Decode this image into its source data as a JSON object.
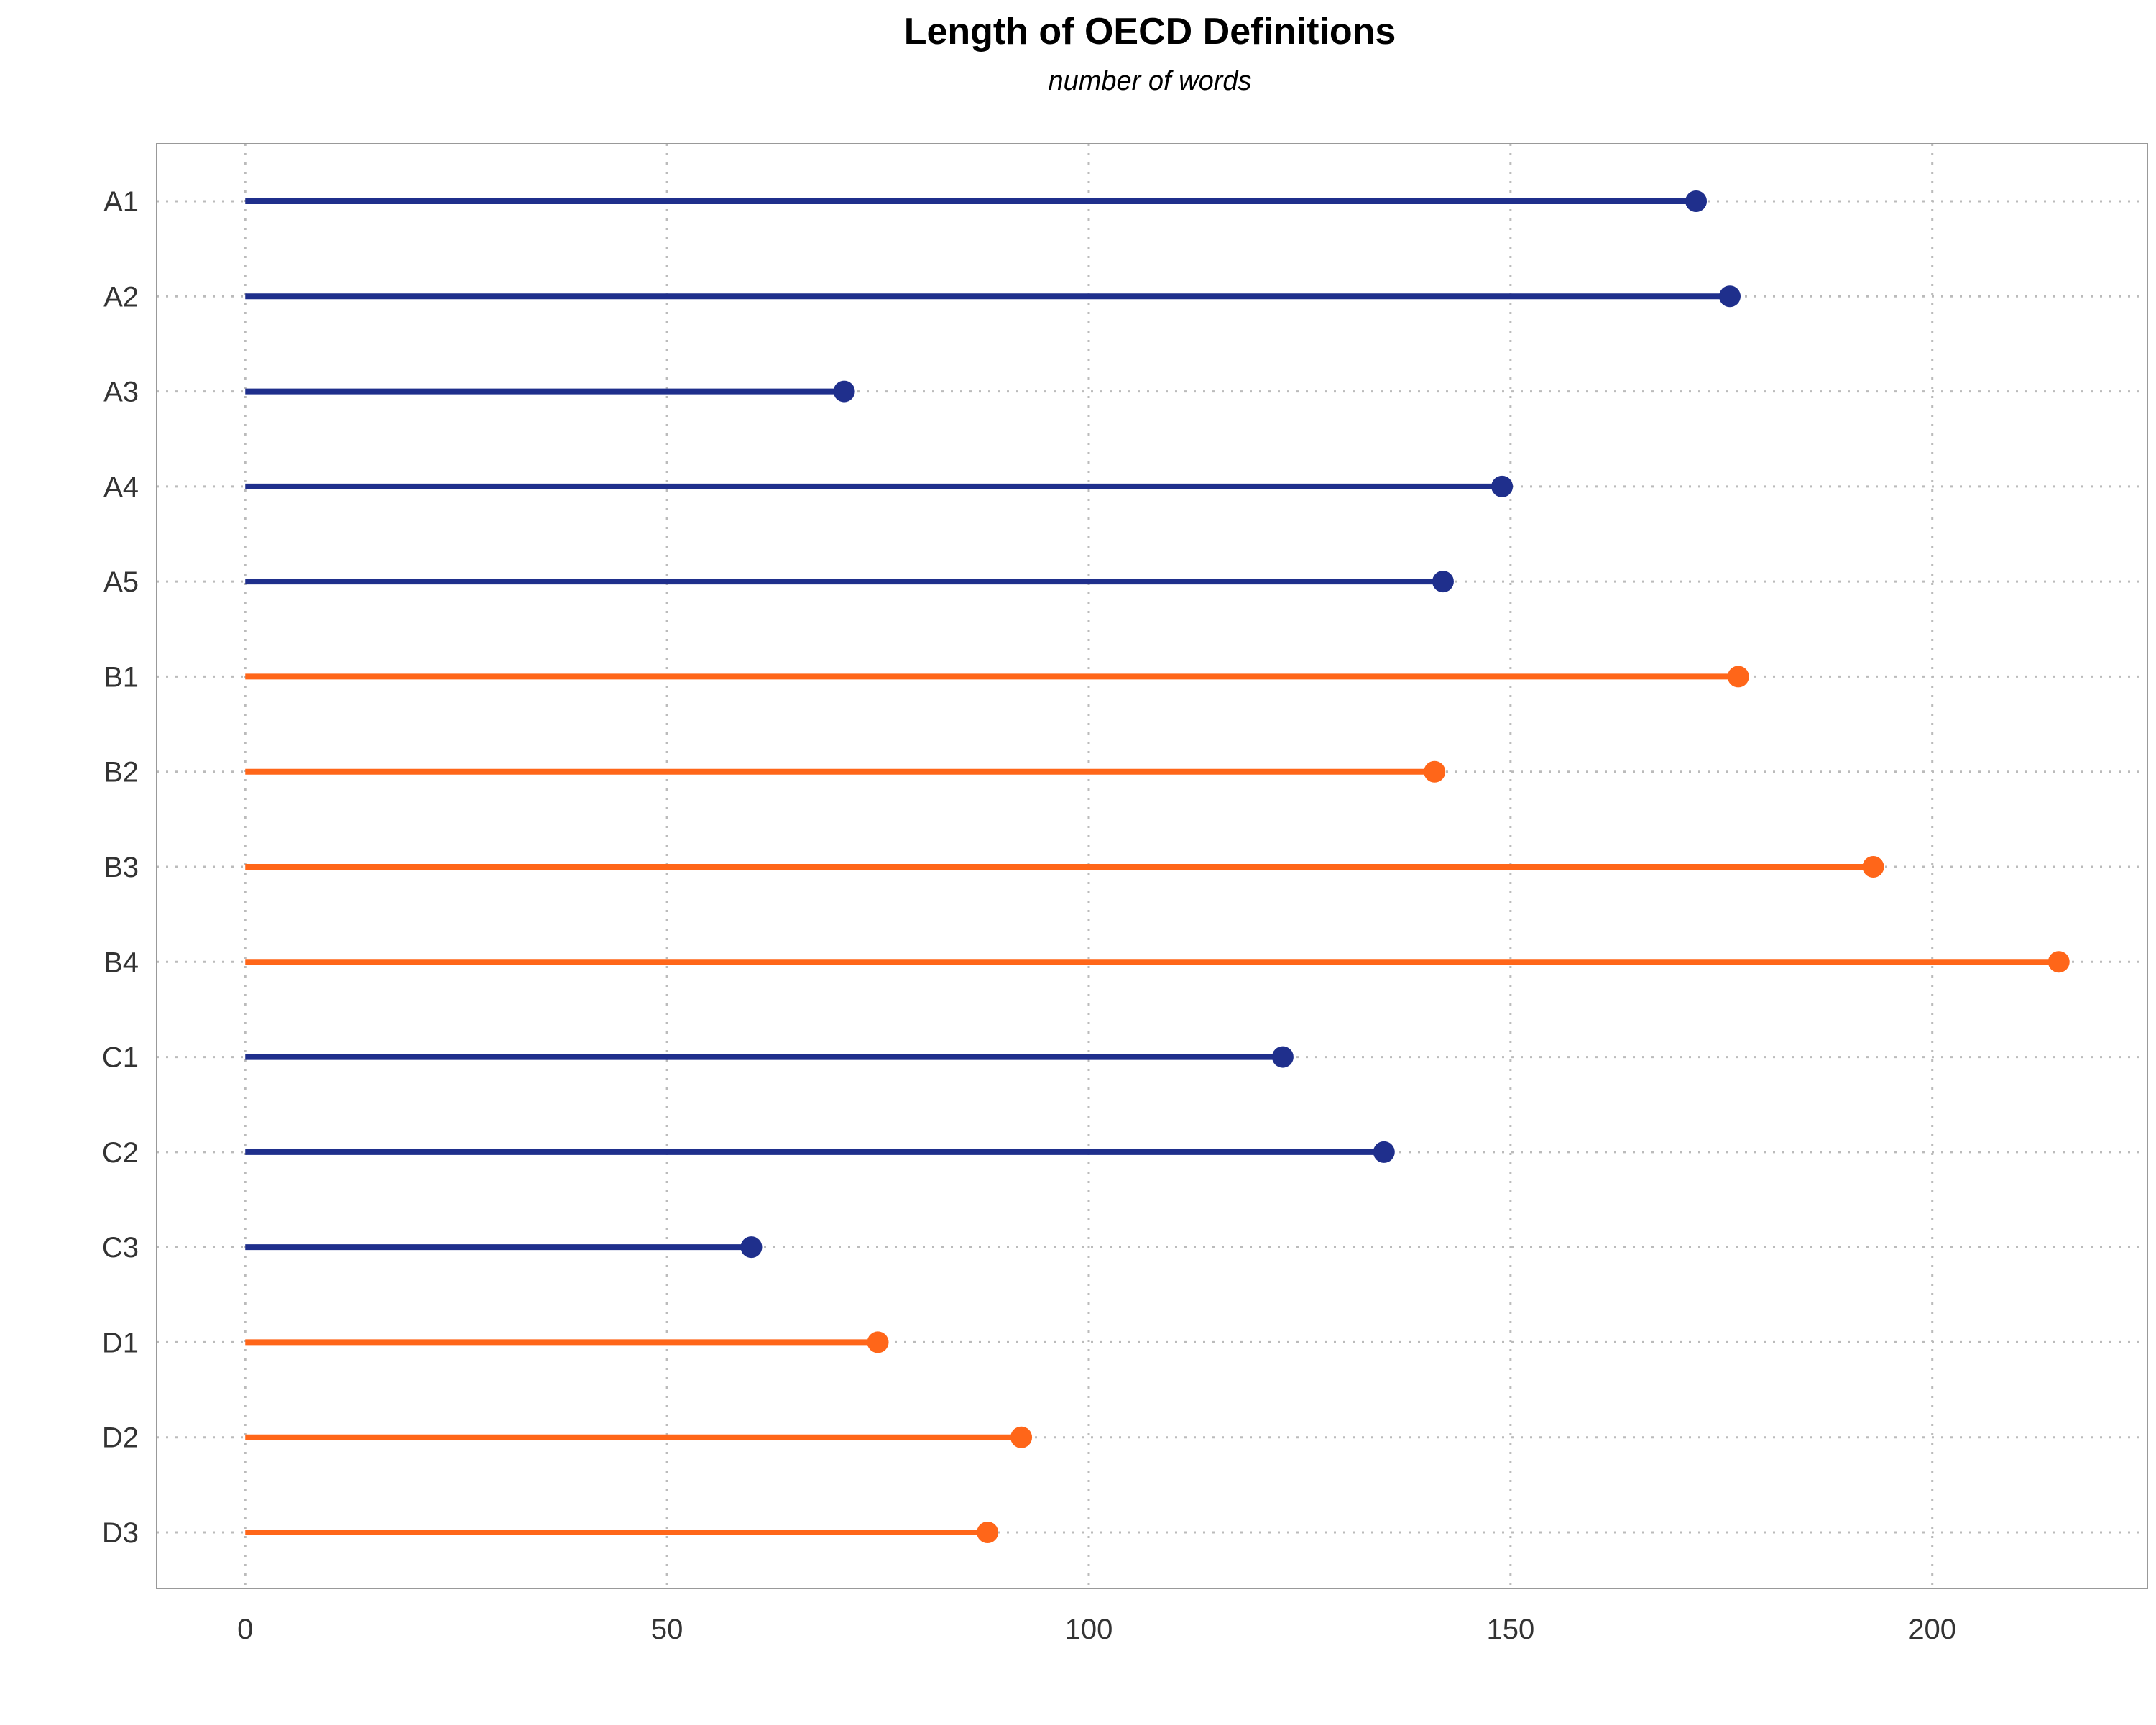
{
  "chart_data": {
    "type": "lollipop",
    "title": "Length of OECD Definitions",
    "subtitle": "number of words",
    "xlabel": "",
    "ylabel": "",
    "xlim": [
      -10.5,
      225.5
    ],
    "xticks": [
      0,
      50,
      100,
      150,
      200
    ],
    "grid": true,
    "colors": {
      "navy": "#1f2f8c",
      "orange": "#ff6619"
    },
    "items": [
      {
        "label": "A1",
        "value": 172,
        "color": "navy"
      },
      {
        "label": "A2",
        "value": 176,
        "color": "navy"
      },
      {
        "label": "A3",
        "value": 71,
        "color": "navy"
      },
      {
        "label": "A4",
        "value": 149,
        "color": "navy"
      },
      {
        "label": "A5",
        "value": 142,
        "color": "navy"
      },
      {
        "label": "B1",
        "value": 177,
        "color": "orange"
      },
      {
        "label": "B2",
        "value": 141,
        "color": "orange"
      },
      {
        "label": "B3",
        "value": 193,
        "color": "orange"
      },
      {
        "label": "B4",
        "value": 215,
        "color": "orange"
      },
      {
        "label": "C1",
        "value": 123,
        "color": "navy"
      },
      {
        "label": "C2",
        "value": 135,
        "color": "navy"
      },
      {
        "label": "C3",
        "value": 60,
        "color": "navy"
      },
      {
        "label": "D1",
        "value": 75,
        "color": "orange"
      },
      {
        "label": "D2",
        "value": 92,
        "color": "orange"
      },
      {
        "label": "D3",
        "value": 88,
        "color": "orange"
      }
    ]
  }
}
